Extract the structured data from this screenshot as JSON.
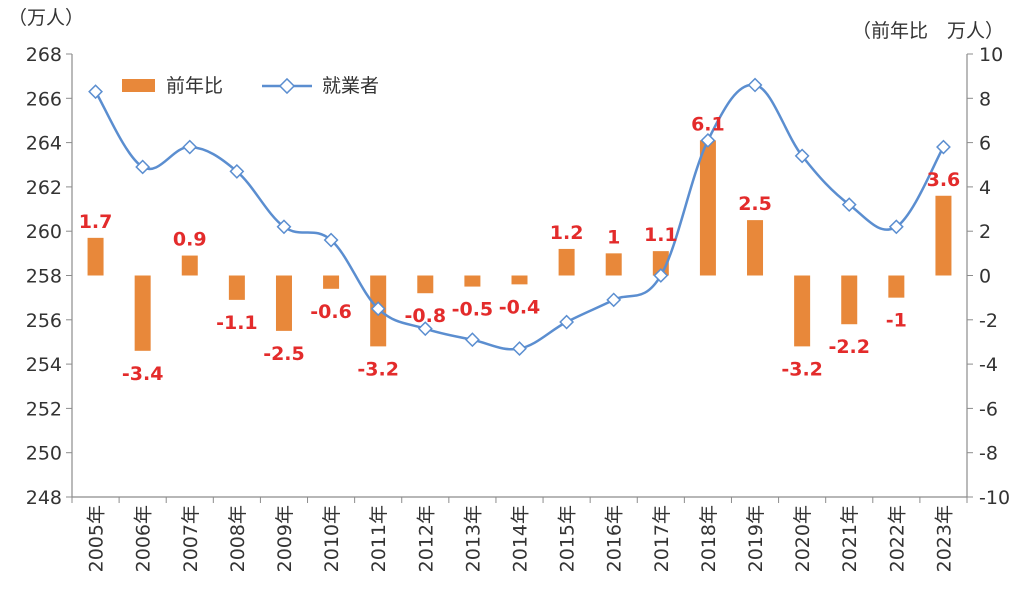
{
  "chart_data": {
    "type": "bar",
    "categories": [
      "2005年",
      "2006年",
      "2007年",
      "2008年",
      "2009年",
      "2010年",
      "2011年",
      "2012年",
      "2013年",
      "2014年",
      "2015年",
      "2016年",
      "2017年",
      "2018年",
      "2019年",
      "2020年",
      "2021年",
      "2022年",
      "2023年"
    ],
    "left_unit": "（万人）",
    "right_unit": "（前年比　万人）",
    "y_left": {
      "ylim": [
        248,
        268
      ],
      "ticks": [
        "248",
        "250",
        "252",
        "254",
        "256",
        "258",
        "260",
        "262",
        "264",
        "266",
        "268"
      ]
    },
    "y_right": {
      "ylim": [
        -10,
        10
      ],
      "ticks": [
        "-10",
        "-8",
        "-6",
        "-4",
        "-2",
        "0",
        "2",
        "4",
        "6",
        "8",
        "10"
      ]
    },
    "legend_position": "top-left",
    "grid": false,
    "series": [
      {
        "name": "前年比",
        "type": "bar",
        "axis": "right",
        "color": "#e8883a",
        "values": [
          1.7,
          -3.4,
          0.9,
          -1.1,
          -2.5,
          -0.6,
          -3.2,
          -0.8,
          -0.5,
          -0.4,
          1.2,
          1,
          1.1,
          6.1,
          2.5,
          -3.2,
          -2.2,
          -1,
          3.6
        ],
        "labels": [
          "1.7",
          "-3.4",
          "0.9",
          "-1.1",
          "-2.5",
          "-0.6",
          "-3.2",
          "-0.8",
          "-0.5",
          "-0.4",
          "1.2",
          "1",
          "1.1",
          "6.1",
          "2.5",
          "-3.2",
          "-2.2",
          "-1",
          "3.6"
        ]
      },
      {
        "name": "就業者",
        "type": "line",
        "axis": "left",
        "color": "#5b8ed0",
        "values": [
          266.3,
          262.9,
          263.8,
          262.7,
          260.2,
          259.6,
          256.5,
          255.6,
          255.1,
          254.7,
          255.9,
          256.9,
          258.0,
          264.1,
          266.6,
          263.4,
          261.2,
          260.2,
          263.8
        ]
      }
    ]
  }
}
